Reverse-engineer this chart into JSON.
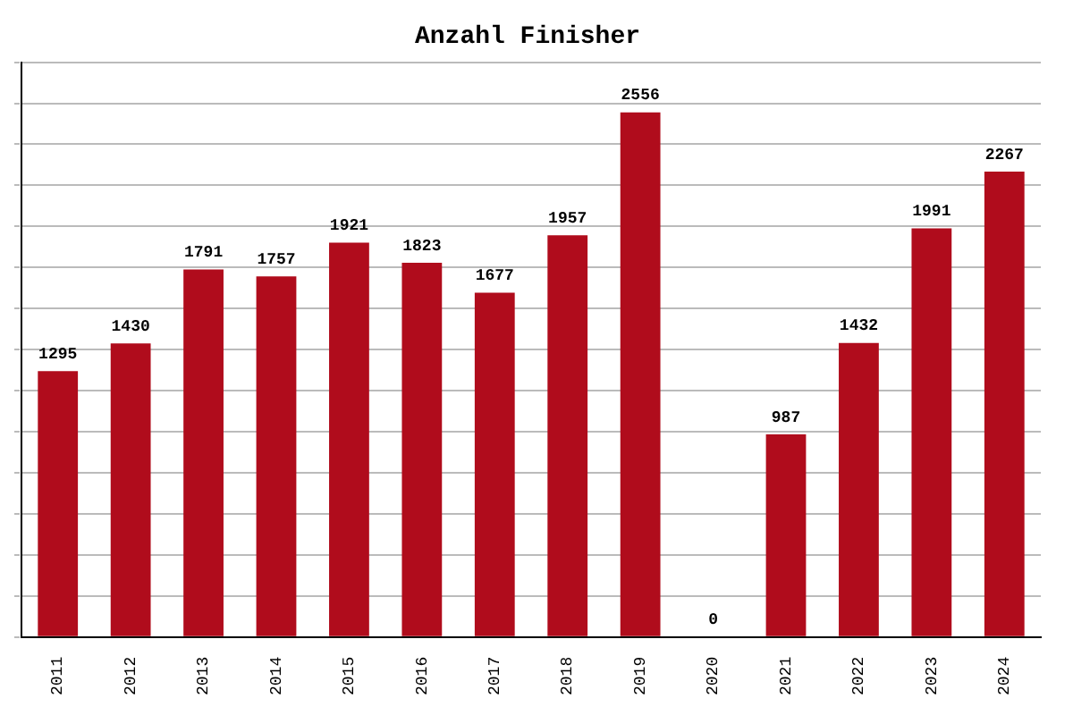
{
  "chart_data": {
    "type": "bar",
    "title": "Anzahl Finisher",
    "categories": [
      "2011",
      "2012",
      "2013",
      "2014",
      "2015",
      "2016",
      "2017",
      "2018",
      "2019",
      "2020",
      "2021",
      "2022",
      "2023",
      "2024"
    ],
    "values": [
      1295,
      1430,
      1791,
      1757,
      1921,
      1823,
      1677,
      1957,
      2556,
      0,
      987,
      1432,
      1991,
      2267
    ],
    "color": "#b00c1c",
    "ylim": [
      0,
      2800
    ],
    "yticks": [
      {
        "value": 0,
        "label": null
      },
      {
        "value": 200,
        "label": null
      },
      {
        "value": 400,
        "label": null
      },
      {
        "value": 600,
        "label": null
      },
      {
        "value": 800,
        "label": null
      },
      {
        "value": 1000,
        "label": null
      },
      {
        "value": 1200,
        "label": null
      },
      {
        "value": 1400,
        "label": null
      },
      {
        "value": 1600,
        "label": null
      },
      {
        "value": 1800,
        "label": null
      },
      {
        "value": 2000,
        "label": null
      },
      {
        "value": 2200,
        "label": null
      },
      {
        "value": 2400,
        "label": null
      },
      {
        "value": 2600,
        "label": null
      },
      {
        "value": 2800,
        "label": null
      }
    ],
    "grid": "y",
    "data_labels": true,
    "tick_labels": "x",
    "legend": false
  }
}
